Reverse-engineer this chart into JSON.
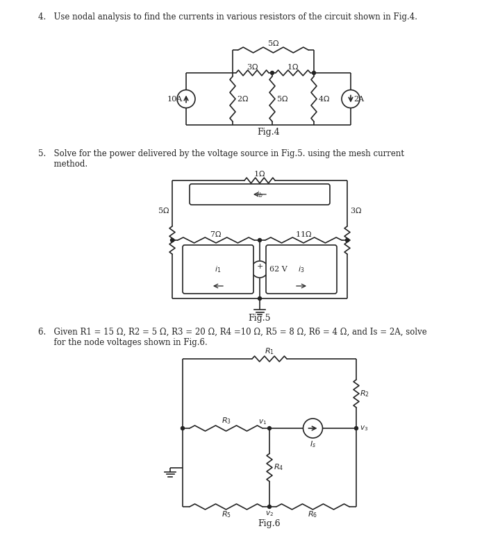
{
  "bg_color": "#ffffff",
  "fig_width": 7.2,
  "fig_height": 8.01,
  "dpi": 100,
  "text_color": "#222222",
  "line_color": "#222222",
  "q4_text": "4.   Use nodal analysis to find the currents in various resistors of the circuit shown in Fig.4.",
  "q5_text_line1": "5.   Solve for the power delivered by the voltage source in Fig.5. using the mesh current",
  "q5_text_line2": "      method.",
  "q6_text_line1": "6.   Given R1 = 15 Ω, R2 = 5 Ω, R3 = 20 Ω, R4 =10 Ω, R5 = 8 Ω, R6 = 4 Ω, and Is = 2A, solve",
  "q6_text_line2": "      for the node voltages shown in Fig.6.",
  "fig4_label": "Fig.4",
  "fig5_label": "Fig.5",
  "fig6_label": "Fig.6"
}
